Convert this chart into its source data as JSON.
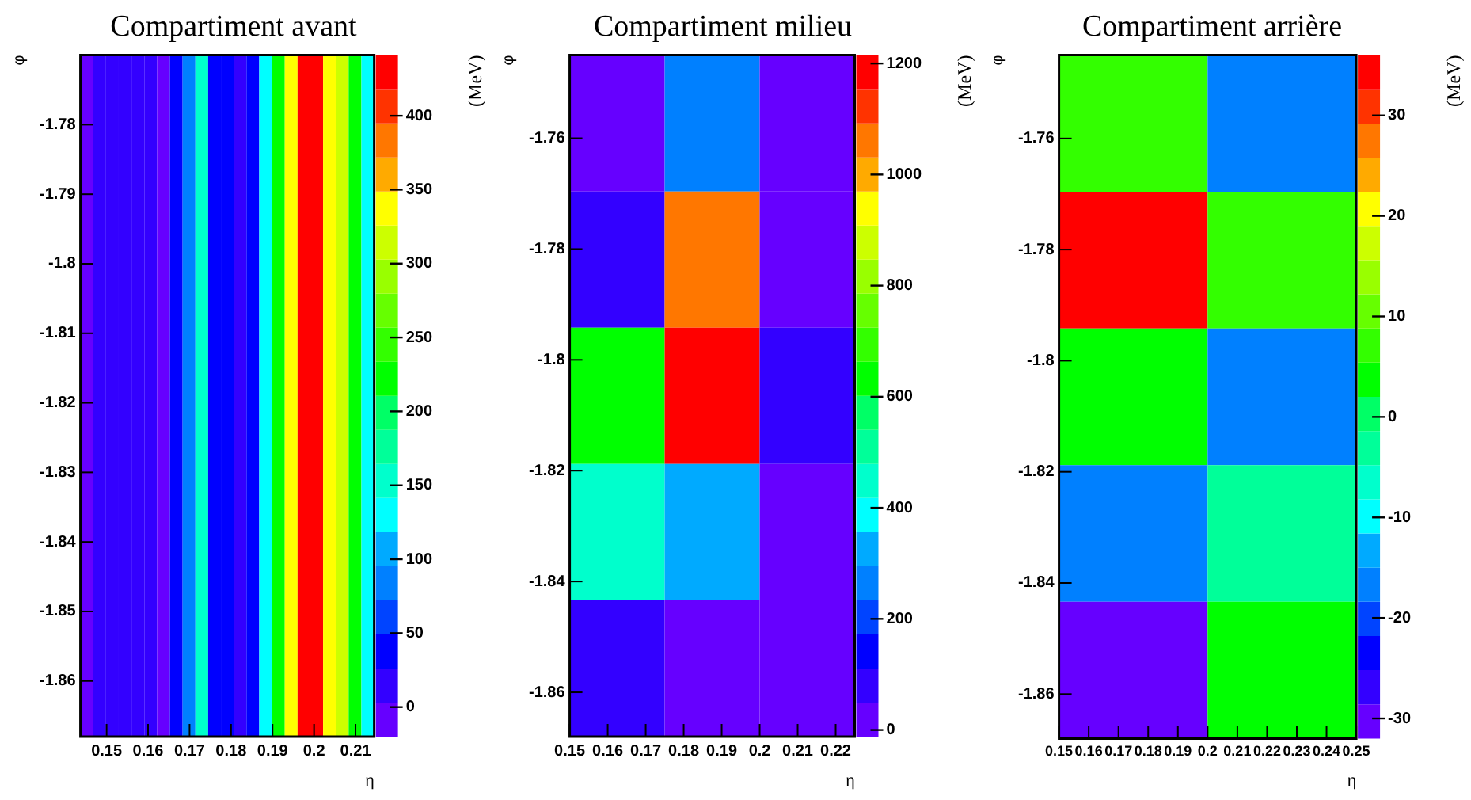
{
  "chart_data": [
    {
      "type": "heatmap",
      "title": "Compartiment avant",
      "xlabel": "η",
      "ylabel": "φ",
      "clabel": "(MeV)",
      "cells": [
        [
          -5,
          15,
          15,
          15,
          15,
          15,
          -5,
          40,
          85,
          150,
          35,
          35,
          15,
          35,
          130,
          230,
          335,
          430,
          430,
          335,
          310,
          230,
          130
        ]
      ],
      "xlim": [
        0.1437,
        0.2145
      ],
      "xticks": [
        0.15,
        0.16,
        0.17,
        0.18,
        0.19,
        0.2,
        0.21
      ],
      "ylim": [
        -1.868,
        -1.77
      ],
      "yticks": [
        -1.86,
        -1.85,
        -1.84,
        -1.83,
        -1.82,
        -1.81,
        -1.8,
        -1.79,
        -1.78
      ],
      "clim": [
        -20,
        441
      ],
      "cticks": [
        0,
        50,
        100,
        150,
        200,
        250,
        300,
        350,
        400
      ]
    },
    {
      "type": "heatmap",
      "title": "Compartiment milieu",
      "xlabel": "η",
      "ylabel": "φ",
      "clabel": "(MeV)",
      "cells": [
        [
          20,
          262,
          20
        ],
        [
          78,
          1062,
          20
        ],
        [
          630,
          1185,
          78
        ],
        [
          446,
          322,
          20
        ],
        [
          78,
          20,
          20
        ]
      ],
      "xlim": [
        0.15,
        0.225
      ],
      "xticks": [
        0.15,
        0.16,
        0.17,
        0.18,
        0.19,
        0.2,
        0.21,
        0.22
      ],
      "ylim": [
        -1.868,
        -1.745
      ],
      "yticks": [
        -1.86,
        -1.84,
        -1.82,
        -1.8,
        -1.78,
        -1.76
      ],
      "clim": [
        -12,
        1215
      ],
      "cticks": [
        0,
        200,
        400,
        600,
        800,
        1000,
        1200
      ]
    },
    {
      "type": "heatmap",
      "title": "Compartiment arrière",
      "xlabel": "η",
      "ylabel": "φ",
      "clabel": "(MeV)",
      "cells": [
        [
          7,
          -17
        ],
        [
          34,
          7
        ],
        [
          4,
          -17
        ],
        [
          -17,
          -3
        ],
        [
          -30,
          4
        ]
      ],
      "xlim": [
        0.15,
        0.25
      ],
      "xticks": [
        0.15,
        0.16,
        0.17,
        0.18,
        0.19,
        0.2,
        0.21,
        0.22,
        0.23,
        0.24,
        0.25
      ],
      "ylim": [
        -1.868,
        -1.745
      ],
      "yticks": [
        -1.86,
        -1.84,
        -1.82,
        -1.8,
        -1.78,
        -1.76
      ],
      "clim": [
        -32,
        36
      ],
      "cticks": [
        -30,
        -20,
        -10,
        0,
        10,
        20,
        30
      ]
    }
  ]
}
